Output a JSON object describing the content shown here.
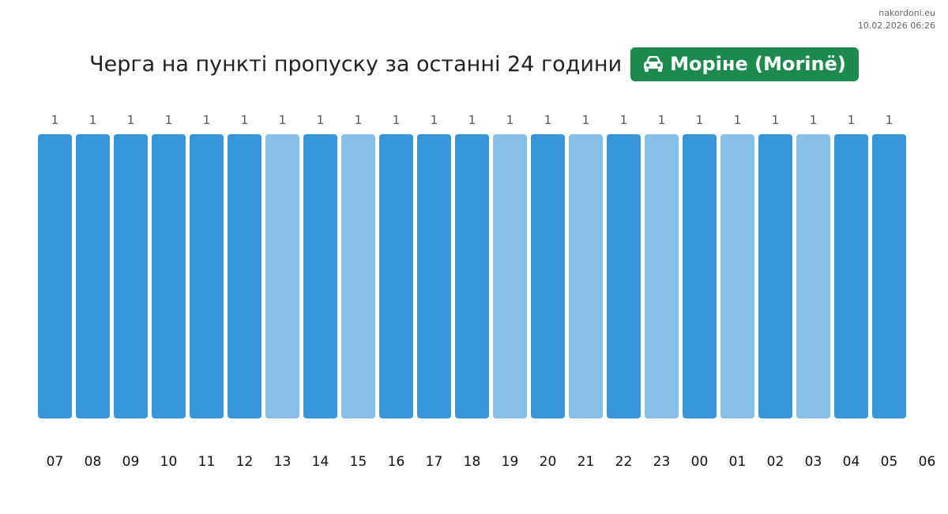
{
  "site": {
    "name": "nakordoni.eu",
    "timestamp": "10.02.2026 06:26"
  },
  "header": {
    "title": "Черга на пункті пропуску за останні 24 години",
    "checkpoint_name": "Моріне (Morinë)",
    "checkpoint_icon": "car-icon",
    "badge_color": "#1b8a4c"
  },
  "chart_data": {
    "type": "bar",
    "categories": [
      "07",
      "08",
      "09",
      "10",
      "11",
      "12",
      "13",
      "14",
      "15",
      "16",
      "17",
      "18",
      "19",
      "20",
      "21",
      "22",
      "23",
      "00",
      "01",
      "02",
      "03",
      "04",
      "05",
      "06"
    ],
    "values": [
      1,
      1,
      1,
      1,
      1,
      1,
      1,
      1,
      1,
      1,
      1,
      1,
      1,
      1,
      1,
      1,
      1,
      1,
      1,
      1,
      1,
      1,
      1,
      null
    ],
    "value_labels": [
      "1",
      "1",
      "1",
      "1",
      "1",
      "1",
      "1",
      "1",
      "1",
      "1",
      "1",
      "1",
      "1",
      "1",
      "1",
      "1",
      "1",
      "1",
      "1",
      "1",
      "1",
      "1",
      "1",
      ""
    ],
    "bar_shades": [
      "dark",
      "dark",
      "dark",
      "dark",
      "dark",
      "dark",
      "light",
      "dark",
      "light",
      "dark",
      "dark",
      "dark",
      "light",
      "dark",
      "light",
      "dark",
      "light",
      "dark",
      "light",
      "dark",
      "light",
      "dark",
      "dark",
      null
    ],
    "colors": {
      "dark": "#3698db",
      "light": "#86c0e9"
    },
    "ylim": [
      0,
      1
    ],
    "grid": false,
    "legend": "none",
    "title": "",
    "xlabel": "",
    "ylabel": ""
  }
}
